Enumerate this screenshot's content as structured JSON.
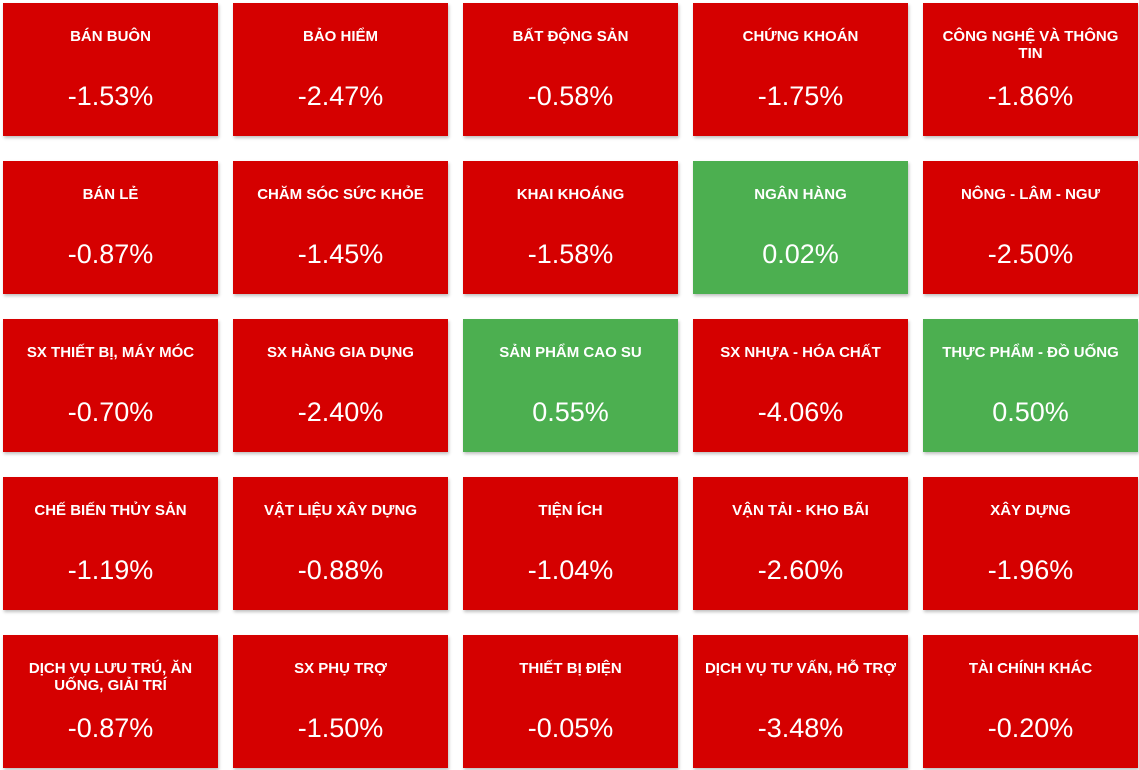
{
  "tiles": [
    {
      "name": "BÁN BUÔN",
      "change": "-1.53%"
    },
    {
      "name": "BẢO HIỂM",
      "change": "-2.47%"
    },
    {
      "name": "BẤT ĐỘNG SẢN",
      "change": "-0.58%"
    },
    {
      "name": "CHỨNG KHOÁN",
      "change": "-1.75%"
    },
    {
      "name": "CÔNG NGHỆ VÀ THÔNG TIN",
      "change": "-1.86%"
    },
    {
      "name": "BÁN LẺ",
      "change": "-0.87%"
    },
    {
      "name": "CHĂM SÓC SỨC KHỎE",
      "change": "-1.45%"
    },
    {
      "name": "KHAI KHOÁNG",
      "change": "-1.58%"
    },
    {
      "name": "NGÂN HÀNG",
      "change": "0.02%"
    },
    {
      "name": "NÔNG - LÂM - NGƯ",
      "change": "-2.50%"
    },
    {
      "name": "SX THIẾT BỊ, MÁY MÓC",
      "change": "-0.70%"
    },
    {
      "name": "SX HÀNG GIA DỤNG",
      "change": "-2.40%"
    },
    {
      "name": "SẢN PHẨM CAO SU",
      "change": "0.55%"
    },
    {
      "name": "SX NHỰA - HÓA CHẤT",
      "change": "-4.06%"
    },
    {
      "name": "THỰC PHẨM - ĐỒ UỐNG",
      "change": "0.50%"
    },
    {
      "name": "CHẾ BIẾN THỦY SẢN",
      "change": "-1.19%"
    },
    {
      "name": "VẬT LIỆU XÂY DỰNG",
      "change": "-0.88%"
    },
    {
      "name": "TIỆN ÍCH",
      "change": "-1.04%"
    },
    {
      "name": "VẬN TẢI - KHO BÃI",
      "change": "-2.60%"
    },
    {
      "name": "XÂY DỰNG",
      "change": "-1.96%"
    },
    {
      "name": "DỊCH VỤ LƯU TRÚ, ĂN UỐNG, GIẢI TRÍ",
      "change": "-0.87%"
    },
    {
      "name": "SX PHỤ TRỢ",
      "change": "-1.50%"
    },
    {
      "name": "THIẾT BỊ ĐIỆN",
      "change": "-0.05%"
    },
    {
      "name": "DỊCH VỤ TƯ VẤN, HỖ TRỢ",
      "change": "-3.48%"
    },
    {
      "name": "TÀI CHÍNH KHÁC",
      "change": "-0.20%"
    }
  ]
}
